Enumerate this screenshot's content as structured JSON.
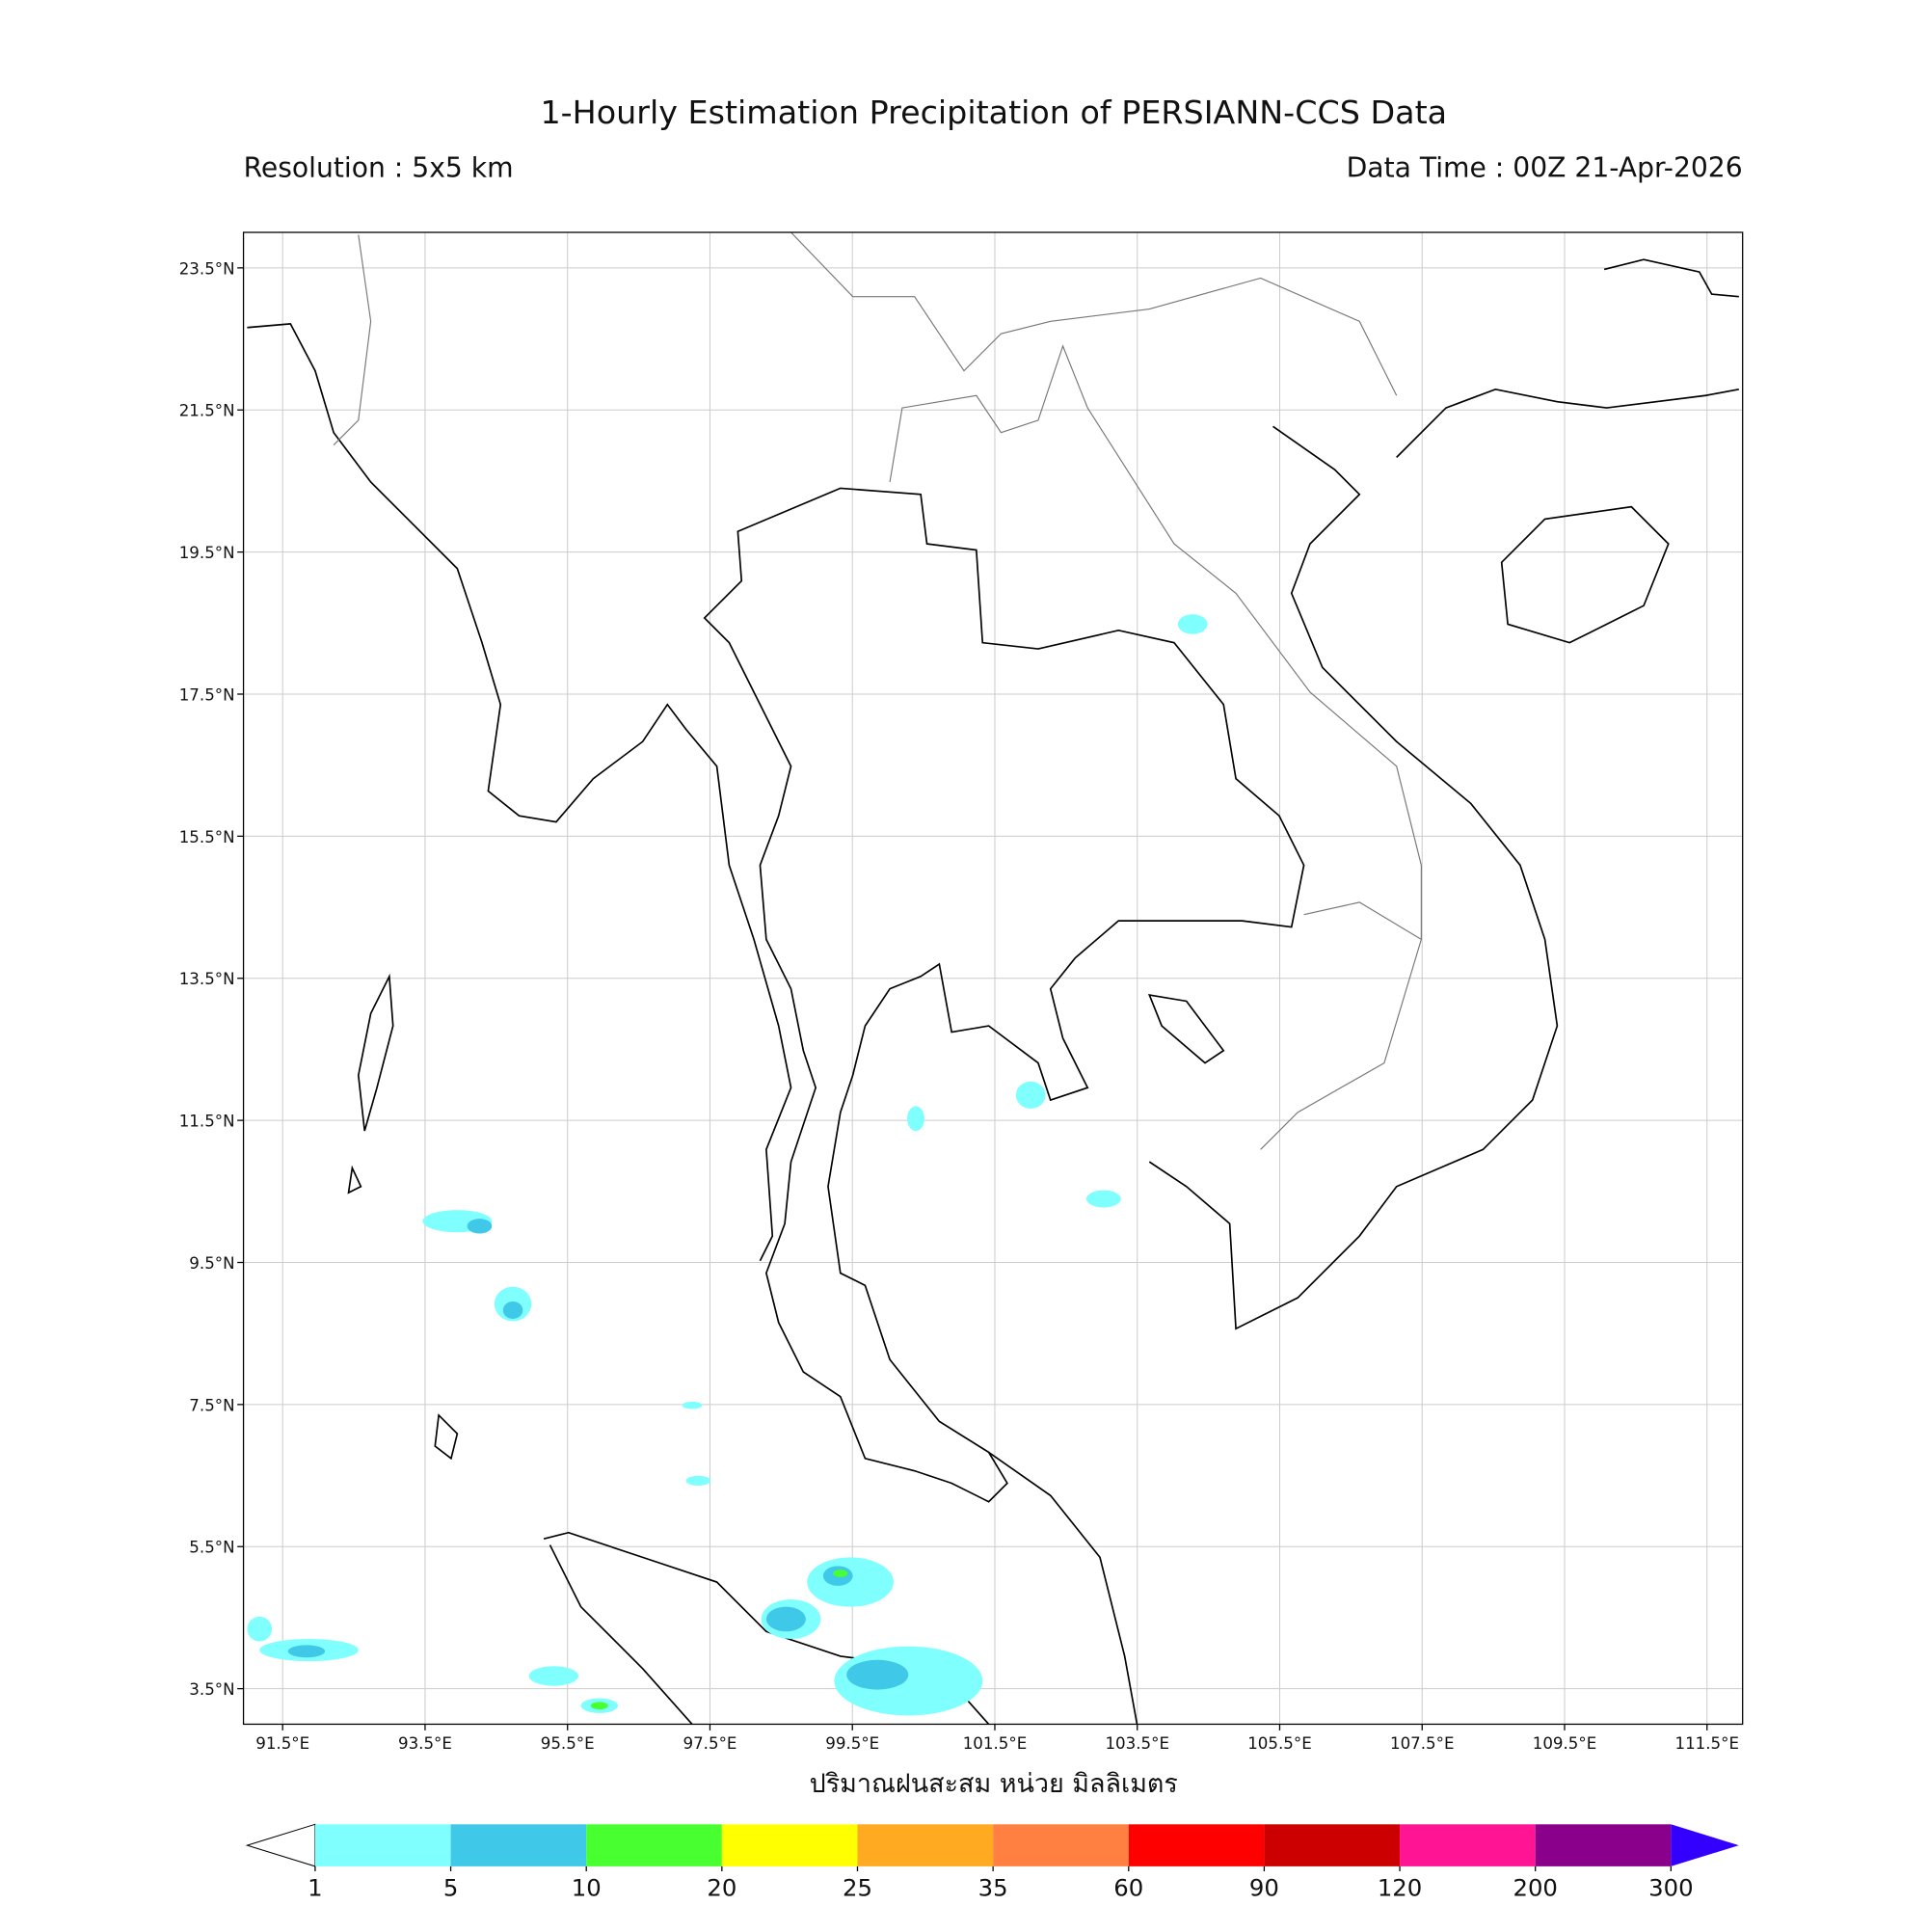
{
  "title": "1-Hourly Estimation Precipitation of PERSIANN-CCS Data",
  "resolution": "Resolution : 5x5 km",
  "data_time": "Data Time : 00Z 21-Apr-2026",
  "map": {
    "xlim": [
      90.95,
      112.0
    ],
    "ylim": [
      3.0,
      24.0
    ],
    "grid": true,
    "xticks": [
      {
        "value": 91.5,
        "label": "91.5°E"
      },
      {
        "value": 93.5,
        "label": "93.5°E"
      },
      {
        "value": 95.5,
        "label": "95.5°E"
      },
      {
        "value": 97.5,
        "label": "97.5°E"
      },
      {
        "value": 99.5,
        "label": "99.5°E"
      },
      {
        "value": 101.5,
        "label": "101.5°E"
      },
      {
        "value": 103.5,
        "label": "103.5°E"
      },
      {
        "value": 105.5,
        "label": "105.5°E"
      },
      {
        "value": 107.5,
        "label": "107.5°E"
      },
      {
        "value": 109.5,
        "label": "109.5°E"
      },
      {
        "value": 111.5,
        "label": "111.5°E"
      }
    ],
    "yticks": [
      {
        "value": 3.5,
        "label": "3.5°N"
      },
      {
        "value": 5.5,
        "label": "5.5°N"
      },
      {
        "value": 7.5,
        "label": "7.5°N"
      },
      {
        "value": 9.5,
        "label": "9.5°N"
      },
      {
        "value": 11.5,
        "label": "11.5°N"
      },
      {
        "value": 13.5,
        "label": "13.5°N"
      },
      {
        "value": 15.5,
        "label": "15.5°N"
      },
      {
        "value": 17.5,
        "label": "17.5°N"
      },
      {
        "value": 19.5,
        "label": "19.5°N"
      },
      {
        "value": 21.5,
        "label": "21.5°N"
      },
      {
        "value": 23.5,
        "label": "23.5°N"
      }
    ]
  },
  "xlabel": "ปริมาณฝนสะสม หน่วย มิลลิเมตร",
  "colorbar": {
    "levels": [
      1,
      5,
      10,
      20,
      25,
      35,
      60,
      90,
      120,
      200,
      300
    ],
    "colors": [
      "#80ffff",
      "#40c8e8",
      "#48ff30",
      "#ffff00",
      "#ffaa20",
      "#ff8040",
      "#ff0000",
      "#cc0000",
      "#ff1493",
      "#8b008b"
    ],
    "under_color": "#ffffff",
    "over_color": "#3300ff"
  }
}
